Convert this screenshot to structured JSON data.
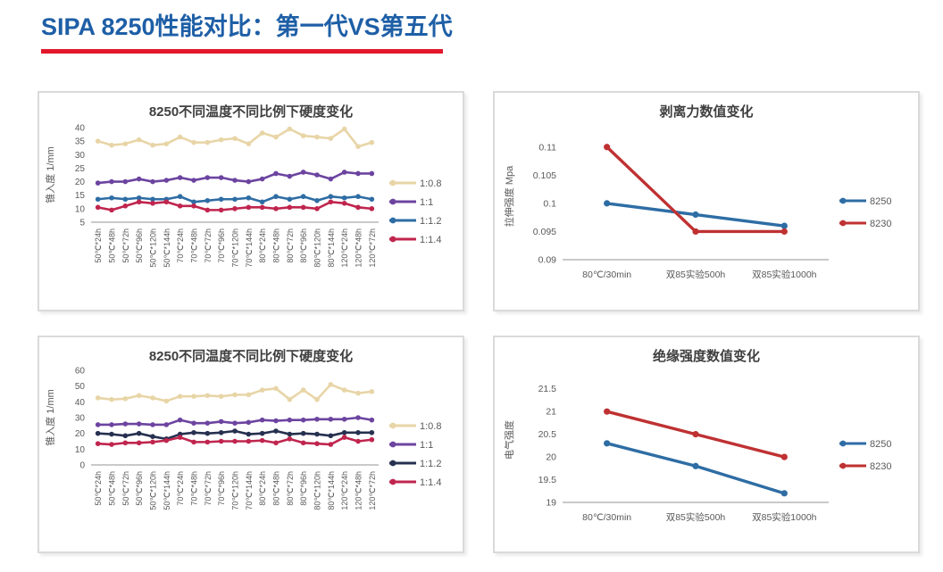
{
  "header": {
    "title": "SIPA 8250性能对比：第一代VS第五代",
    "title_color": "#1E5FA6",
    "accent_color": "#E2172B"
  },
  "chart_data": [
    {
      "type": "line",
      "title": "8250不同温度不同比例下硬度变化",
      "xlabel": "",
      "ylabel": "锥入度 1/mm",
      "ylim": [
        5,
        40
      ],
      "yticks": [
        5,
        10,
        15,
        20,
        25,
        30,
        35,
        40
      ],
      "grid": false,
      "legend_position": "right",
      "categories": [
        "50℃*24h",
        "50℃*48h",
        "50℃*72h",
        "50℃*96h",
        "50℃*120h",
        "50℃*144h",
        "70℃*24h",
        "70℃*48h",
        "70℃*72h",
        "70℃*96h",
        "70℃*120h",
        "70℃*144h",
        "80℃*24h",
        "80℃*48h",
        "80℃*72h",
        "80℃*96h",
        "80℃*120h",
        "80℃*144h",
        "120℃*24h",
        "120℃*48h",
        "120℃*72h"
      ],
      "series": [
        {
          "name": "1:0.8",
          "color": "#E8D5A7",
          "values": [
            35,
            33.5,
            34,
            35.5,
            33.5,
            34,
            36.5,
            34.5,
            34.5,
            35.5,
            36,
            34,
            38,
            36.5,
            39.5,
            37,
            36.5,
            36,
            39.5,
            33,
            34.5
          ]
        },
        {
          "name": "1:1",
          "color": "#6C44A0",
          "values": [
            19.5,
            20,
            20,
            21,
            20,
            20.5,
            21.5,
            20.5,
            21.5,
            21.5,
            20.5,
            20,
            21,
            23,
            22,
            23.5,
            22.5,
            21,
            23.5,
            23,
            23
          ]
        },
        {
          "name": "1:1.2",
          "color": "#2E6DA4",
          "values": [
            13.5,
            14,
            13.5,
            14,
            13.5,
            13.5,
            14.5,
            12.5,
            13,
            13.5,
            13.5,
            14,
            12.5,
            14.5,
            13.5,
            14.5,
            13,
            14.5,
            14,
            14.5,
            13.5
          ]
        },
        {
          "name": "1:1.4",
          "color": "#C0254E",
          "values": [
            10.5,
            9.5,
            11,
            12.5,
            12,
            12.5,
            11,
            11,
            9.5,
            9.5,
            10,
            10.5,
            10.5,
            10,
            10.5,
            10.5,
            10,
            12.5,
            12,
            10.5,
            10
          ]
        }
      ]
    },
    {
      "type": "line",
      "title": "剥离力数值变化",
      "xlabel": "",
      "ylabel": "拉伸强度 Mpa",
      "ylim": [
        0.09,
        0.1125
      ],
      "yticks": [
        0.09,
        0.095,
        0.1,
        0.105,
        0.11
      ],
      "grid": false,
      "legend_position": "right",
      "categories": [
        "80℃/30min",
        "双85实验500h",
        "双85实验1000h"
      ],
      "series": [
        {
          "name": "8250",
          "color": "#2E6DA4",
          "values": [
            0.1,
            0.098,
            0.096
          ]
        },
        {
          "name": "8230",
          "color": "#BF3132",
          "values": [
            0.11,
            0.095,
            0.095
          ]
        }
      ]
    },
    {
      "type": "line",
      "title": "8250不同温度不同比例下硬度变化",
      "xlabel": "",
      "ylabel": "锥入度 1/mm",
      "ylim": [
        0,
        60
      ],
      "yticks": [
        0,
        10,
        20,
        30,
        40,
        50,
        60
      ],
      "grid": false,
      "legend_position": "right",
      "categories": [
        "50℃*24h",
        "50℃*48h",
        "50℃*72h",
        "50℃*96h",
        "50℃*120h",
        "50℃*144h",
        "70℃*24h",
        "70℃*48h",
        "70℃*72h",
        "70℃*96h",
        "70℃*120h",
        "70℃*144h",
        "80℃*24h",
        "80℃*48h",
        "80℃*72h",
        "80℃*96h",
        "80℃*120h",
        "80℃*144h",
        "120℃*24h",
        "120℃*48h",
        "120℃*72h"
      ],
      "series": [
        {
          "name": "1:0.8",
          "color": "#E8D5A7",
          "values": [
            42.5,
            41.5,
            42,
            44,
            42.5,
            40.5,
            43.5,
            43.5,
            44,
            43.5,
            44.5,
            44.5,
            47.5,
            48.5,
            41.5,
            47.5,
            41.5,
            51,
            47.5,
            45.5,
            46.5
          ]
        },
        {
          "name": "1:1",
          "color": "#6C44A0",
          "values": [
            25.5,
            25.5,
            26,
            26,
            25.5,
            25.5,
            28.5,
            26.5,
            26.5,
            27.5,
            26.5,
            27,
            28.5,
            28,
            28.5,
            28.5,
            29,
            29,
            29,
            30,
            28.5
          ]
        },
        {
          "name": "1:1.2",
          "color": "#26304F",
          "values": [
            20,
            19.5,
            18.5,
            20,
            18,
            16.5,
            19.5,
            20.5,
            20,
            20.5,
            21.5,
            19.5,
            20,
            21.5,
            19.5,
            20,
            19.5,
            18.5,
            20.5,
            20.5,
            20.5
          ]
        },
        {
          "name": "1:1.4",
          "color": "#C0254E",
          "values": [
            13.5,
            13,
            14,
            14,
            14.5,
            15.5,
            17.5,
            14.5,
            14.5,
            15,
            15,
            15,
            15.5,
            14,
            16.5,
            14,
            13.5,
            13,
            17.5,
            15,
            16
          ]
        }
      ]
    },
    {
      "type": "line",
      "title": "绝缘强度数值变化",
      "xlabel": "",
      "ylabel": "电气强度",
      "ylim": [
        19,
        21.75
      ],
      "yticks": [
        19,
        19.5,
        20,
        20.5,
        21,
        21.5
      ],
      "grid": false,
      "legend_position": "right",
      "categories": [
        "80℃/30min",
        "双85实验500h",
        "双85实验1000h"
      ],
      "series": [
        {
          "name": "8250",
          "color": "#2E6DA4",
          "values": [
            20.3,
            19.8,
            19.2
          ]
        },
        {
          "name": "8230",
          "color": "#BF3132",
          "values": [
            21,
            20.5,
            20
          ]
        }
      ]
    }
  ]
}
